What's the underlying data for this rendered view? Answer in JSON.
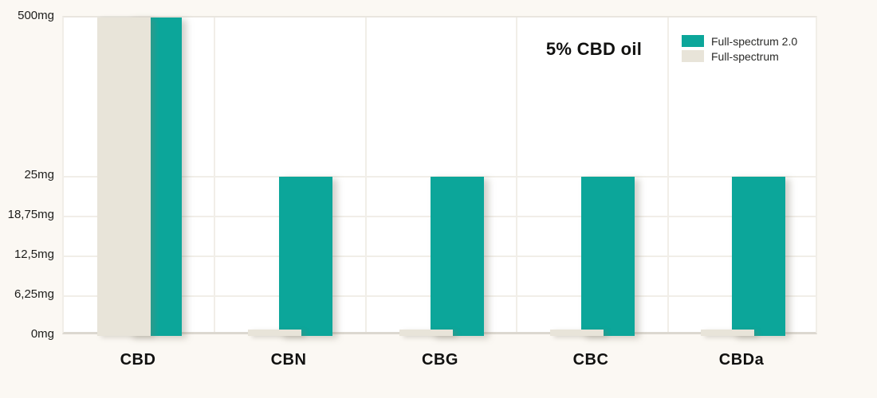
{
  "chart_data": {
    "type": "bar",
    "title": "5% CBD oil",
    "categories": [
      "CBD",
      "CBN",
      "CBG",
      "CBC",
      "CBDa"
    ],
    "series": [
      {
        "name": "Full-spectrum 2.0",
        "color": "#0ca69a",
        "values": [
          500,
          25,
          25,
          25,
          25
        ]
      },
      {
        "name": "Full-spectrum",
        "color": "#e8e4d9",
        "values": [
          500,
          1,
          1,
          1,
          1
        ]
      }
    ],
    "y_ticks": [
      {
        "label": "0mg",
        "value": 0
      },
      {
        "label": "6,25mg",
        "value": 6.25
      },
      {
        "label": "12,5mg",
        "value": 12.5
      },
      {
        "label": "18,75mg",
        "value": 18.75
      },
      {
        "label": "25mg",
        "value": 25
      },
      {
        "label": "500mg",
        "value": 500
      }
    ],
    "xlabel": "",
    "ylabel": "",
    "unit": "mg",
    "axis_note": "non-linear y-axis: 0-25mg expanded, 25-500mg compressed",
    "legend_position": "top-right",
    "grid": true
  },
  "colors": {
    "background": "#fbf8f3",
    "plot_background": "#ffffff",
    "full_spectrum_2_0": "#0ca69a",
    "full_spectrum": "#e8e4d9",
    "text": "#111110"
  }
}
